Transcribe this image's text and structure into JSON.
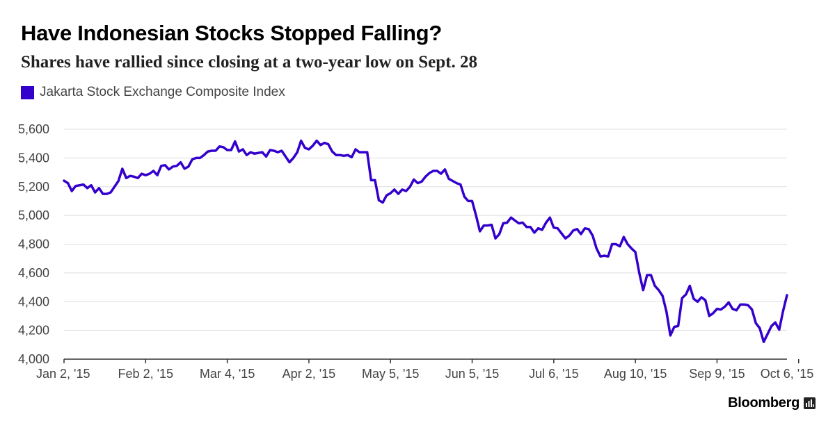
{
  "chart_data": {
    "type": "line",
    "title": "Have Indonesian Stocks Stopped Falling?",
    "subtitle": "Shares have rallied since closing at a two-year low on Sept. 28",
    "series": [
      {
        "name": "Jakarta Stock Exchange Composite Index",
        "color": "#3300cc",
        "values": [
          5242,
          5225,
          5170,
          5205,
          5210,
          5215,
          5190,
          5210,
          5160,
          5190,
          5150,
          5150,
          5160,
          5200,
          5240,
          5325,
          5260,
          5275,
          5270,
          5260,
          5290,
          5280,
          5290,
          5310,
          5280,
          5345,
          5350,
          5320,
          5340,
          5345,
          5370,
          5325,
          5340,
          5390,
          5400,
          5400,
          5420,
          5445,
          5450,
          5450,
          5480,
          5475,
          5455,
          5455,
          5515,
          5445,
          5460,
          5420,
          5440,
          5430,
          5435,
          5440,
          5410,
          5455,
          5450,
          5440,
          5450,
          5410,
          5370,
          5400,
          5440,
          5520,
          5470,
          5460,
          5485,
          5520,
          5490,
          5505,
          5495,
          5445,
          5420,
          5420,
          5415,
          5420,
          5405,
          5460,
          5440,
          5440,
          5440,
          5245,
          5245,
          5105,
          5090,
          5140,
          5155,
          5180,
          5150,
          5180,
          5170,
          5200,
          5250,
          5225,
          5235,
          5270,
          5295,
          5310,
          5310,
          5290,
          5320,
          5255,
          5240,
          5225,
          5215,
          5130,
          5100,
          5100,
          5000,
          4890,
          4930,
          4930,
          4935,
          4840,
          4870,
          4945,
          4950,
          4985,
          4965,
          4945,
          4950,
          4920,
          4920,
          4880,
          4910,
          4900,
          4950,
          4985,
          4915,
          4910,
          4875,
          4840,
          4860,
          4895,
          4905,
          4870,
          4910,
          4905,
          4860,
          4770,
          4715,
          4720,
          4715,
          4800,
          4800,
          4785,
          4850,
          4800,
          4770,
          4745,
          4600,
          4480,
          4585,
          4585,
          4510,
          4480,
          4440,
          4330,
          4165,
          4225,
          4230,
          4425,
          4450,
          4510,
          4420,
          4400,
          4430,
          4410,
          4300,
          4320,
          4350,
          4345,
          4365,
          4395,
          4350,
          4340,
          4380,
          4380,
          4375,
          4345,
          4250,
          4215,
          4120,
          4175,
          4230,
          4255,
          4205,
          4335,
          4445
        ]
      }
    ],
    "x_tick_labels": [
      "Jan 2, '15",
      "Feb 2, '15",
      "Mar 4, '15",
      "Apr 2, '15",
      "May 5, '15",
      "Jun 5, '15",
      "Jul 6, '15",
      "Aug 10, '15",
      "Sep 9, '15",
      "Oct 6, '15"
    ],
    "x_tick_positions": [
      0,
      21,
      42,
      63,
      84,
      105,
      126,
      147,
      168,
      189
    ],
    "y_ticks": [
      4000,
      4200,
      4400,
      4600,
      4800,
      5000,
      5200,
      5400,
      5600
    ],
    "y_tick_labels": [
      "4,000",
      "4,200",
      "4,400",
      "4,600",
      "4,800",
      "5,000",
      "5,200",
      "5,400",
      "5,600"
    ],
    "ylim": [
      4000,
      5600
    ],
    "xlabel": "",
    "ylabel": "",
    "grid": true,
    "legend_placement": "top-left"
  },
  "brand": {
    "name": "Bloomberg",
    "icon": "bloomberg-bar-chart-icon"
  }
}
